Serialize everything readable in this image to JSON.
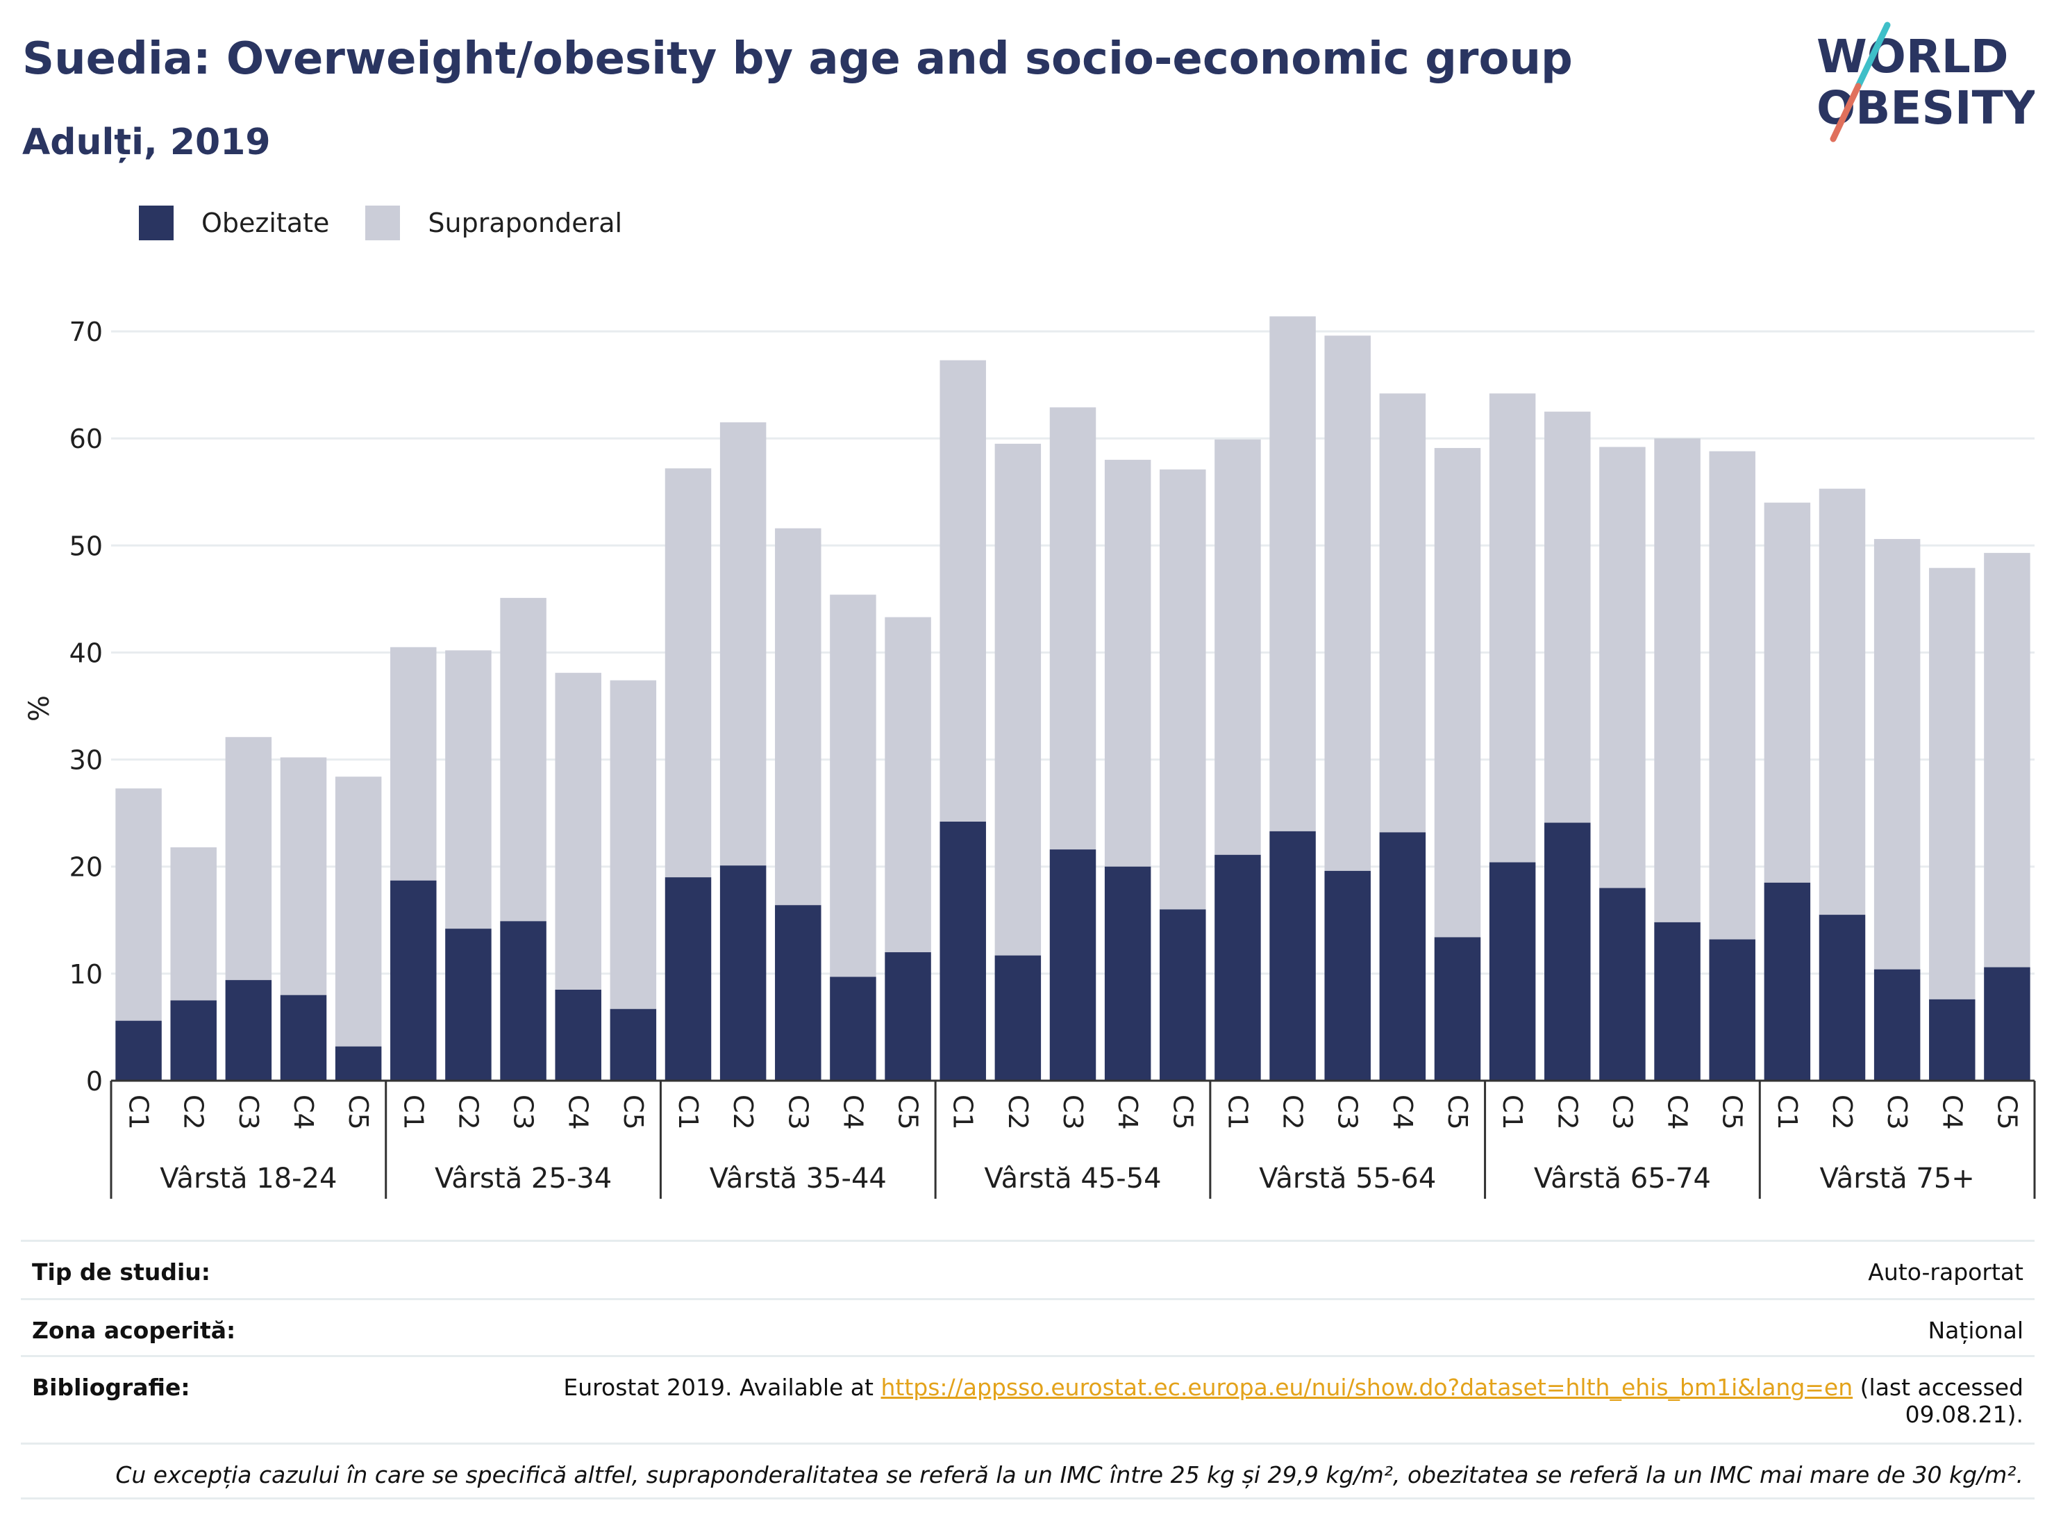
{
  "title": "Suedia: Overweight/obesity by age and socio-economic group",
  "subtitle": "Adulți, 2019",
  "logo": {
    "line1": "WORLD",
    "line2": "OBESITY"
  },
  "colors": {
    "obesity": "#2a3561",
    "overweight": "#cbcdd8",
    "title": "#2a3561",
    "link": "#e3a21a"
  },
  "legend": [
    {
      "label": "Obezitate",
      "color": "#2a3561"
    },
    {
      "label": "Supraponderal",
      "color": "#cbcdd8"
    }
  ],
  "chart_data": {
    "type": "bar",
    "stacked": true,
    "ylabel": "%",
    "ylim": [
      0,
      75
    ],
    "yticks": [
      0,
      10,
      20,
      30,
      40,
      50,
      60,
      70
    ],
    "grid": true,
    "legend_position": "top-left",
    "groups": [
      "Vârstă 18-24",
      "Vârstă 25-34",
      "Vârstă 35-44",
      "Vârstă 45-54",
      "Vârstă 55-64",
      "Vârstă 65-74",
      "Vârstă 75+"
    ],
    "categories": [
      "C1",
      "C2",
      "C3",
      "C4",
      "C5"
    ],
    "series": [
      {
        "name": "Obezitate",
        "values": [
          [
            5.6,
            7.5,
            9.4,
            8.0,
            3.2
          ],
          [
            18.7,
            14.2,
            14.9,
            8.5,
            6.7
          ],
          [
            19.0,
            20.1,
            16.4,
            9.7,
            12.0
          ],
          [
            24.2,
            11.7,
            21.6,
            20.0,
            16.0
          ],
          [
            21.1,
            23.3,
            19.6,
            23.2,
            13.4
          ],
          [
            20.4,
            24.1,
            18.0,
            14.8,
            13.2
          ],
          [
            18.5,
            15.5,
            10.4,
            7.6,
            10.6
          ]
        ]
      },
      {
        "name": "Supraponderal",
        "values": [
          [
            21.7,
            14.3,
            22.7,
            22.2,
            25.2
          ],
          [
            21.8,
            26.0,
            30.2,
            29.6,
            30.7
          ],
          [
            38.2,
            41.4,
            35.2,
            35.7,
            31.3
          ],
          [
            43.1,
            47.8,
            41.3,
            38.0,
            41.1
          ],
          [
            38.8,
            48.1,
            50.0,
            41.0,
            45.7
          ],
          [
            43.8,
            38.4,
            41.2,
            45.2,
            45.6
          ],
          [
            35.5,
            39.8,
            40.2,
            40.3,
            38.7
          ]
        ]
      }
    ]
  },
  "info": {
    "study_type_label": "Tip de studiu:",
    "study_type_value": "Auto-raportat",
    "coverage_label": "Zona acoperită:",
    "coverage_value": "Național",
    "bibliography_label": "Bibliografie:",
    "bibliography_prefix": "Eurostat 2019. Available at",
    "bibliography_link": "https://appsso.eurostat.ec.europa.eu/nui/show.do?dataset=hlth_ehis_bm1i&lang=en",
    "bibliography_suffix": "(last accessed",
    "bibliography_date": "09.08.21).",
    "note": "Cu excepția cazului în care se specifică altfel, supraponderalitatea se referă la un IMC între 25 kg și 29,9 kg/m², obezitatea se referă la un IMC mai mare de 30 kg/m²."
  }
}
